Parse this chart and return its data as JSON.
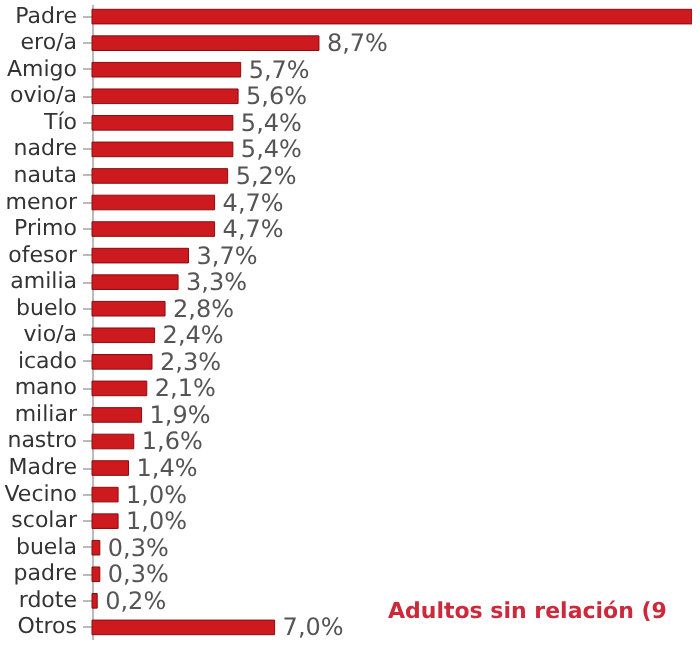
{
  "chart_data": {
    "type": "bar",
    "orientation": "horizontal",
    "categories": [
      "Padre",
      "ero/a",
      "Amigo",
      "ovio/a",
      "Tío",
      "nadre",
      "nauta",
      "menor",
      "Primo",
      "ofesor",
      "amilia",
      "buelo",
      "vio/a",
      "icado",
      "mano",
      "miliar",
      "nastro",
      "Madre",
      "Vecino",
      "scolar",
      "buela",
      "padre",
      "rdote",
      "Otros"
    ],
    "values": [
      23,
      8.7,
      5.7,
      5.6,
      5.4,
      5.4,
      5.2,
      4.7,
      4.7,
      3.7,
      3.3,
      2.8,
      2.4,
      2.3,
      2.1,
      1.9,
      1.6,
      1.4,
      1.0,
      1.0,
      0.3,
      0.3,
      0.2,
      7.0
    ],
    "value_labels": [
      null,
      "8,7%",
      "5,7%",
      "5,6%",
      "5,4%",
      "5,4%",
      "5,2%",
      "4,7%",
      "4,7%",
      "3,7%",
      "3,3%",
      "2,8%",
      "2,4%",
      "2,3%",
      "2,1%",
      "1,9%",
      "1,6%",
      "1,4%",
      "1,0%",
      "1,0%",
      "0,3%",
      "0,3%",
      "0,2%",
      "7,0%"
    ],
    "color": "#cc1a1f",
    "xlim": [
      0,
      23
    ],
    "tick_labels": "y",
    "annotations": [
      "Adultos sin relación (9"
    ]
  }
}
